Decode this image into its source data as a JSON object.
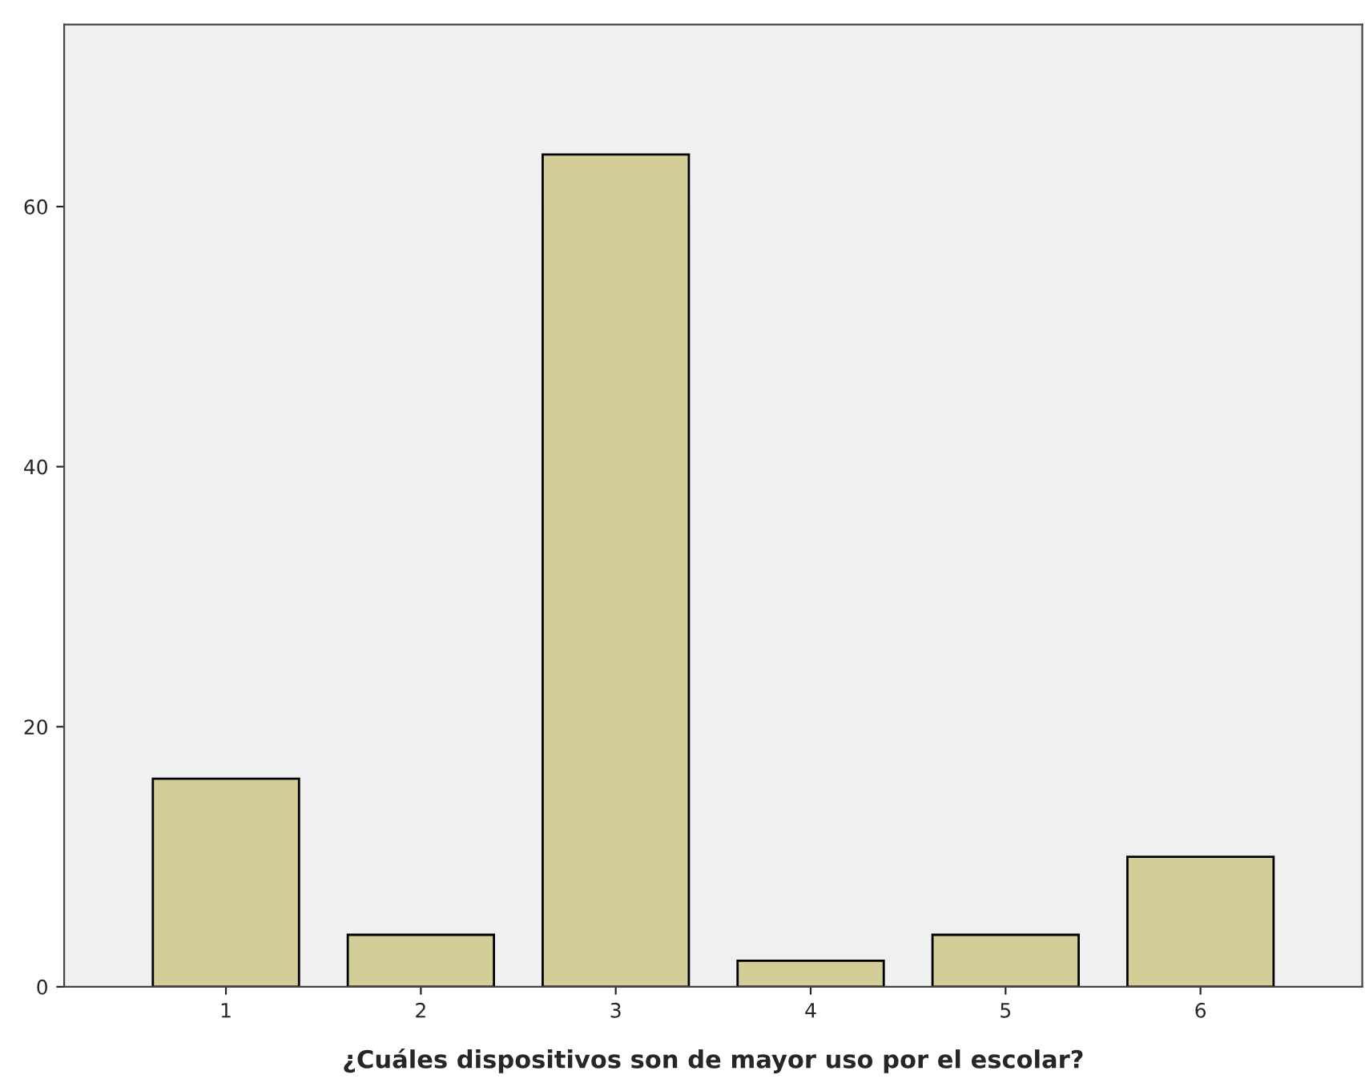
{
  "chart_data": {
    "type": "bar",
    "xlabel": "¿Cuáles dispositivos son de mayor uso por el escolar?",
    "categories": [
      "1",
      "2",
      "3",
      "4",
      "5",
      "6"
    ],
    "values": [
      16,
      4,
      64,
      2,
      4,
      10
    ],
    "color": "#d3ce97",
    "ylim": [
      0,
      74
    ],
    "yticks": [
      0,
      20,
      40,
      60
    ],
    "grid": false
  }
}
